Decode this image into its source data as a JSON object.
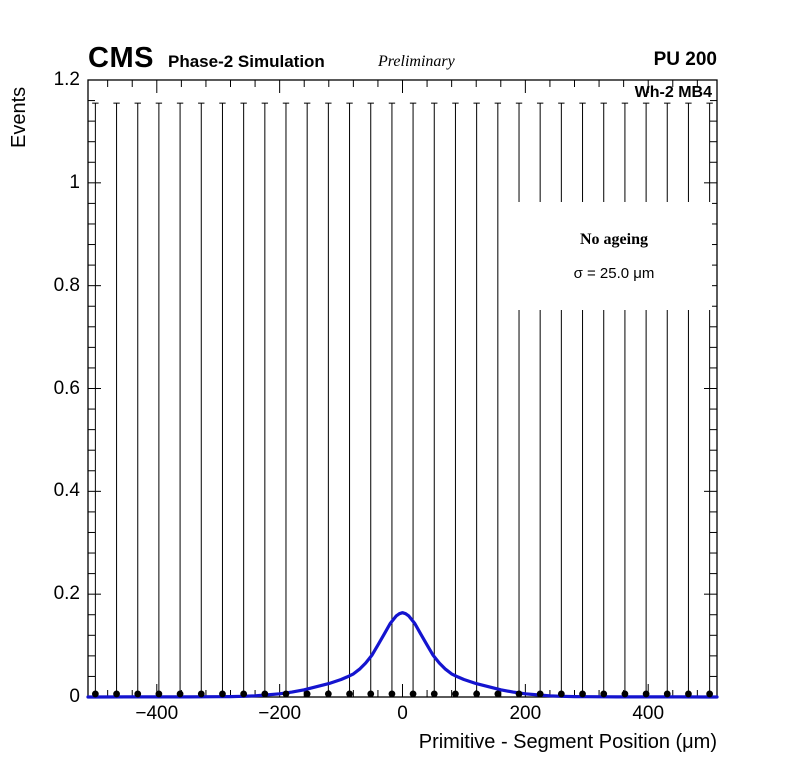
{
  "header": {
    "cms": "CMS",
    "phase": "Phase-2 Simulation",
    "preliminary": "Preliminary",
    "pu": "PU 200"
  },
  "plot_label": "Wh-2 MB4",
  "info_box": {
    "line1": "No ageing",
    "line2": "σ = 25.0 μm"
  },
  "chart_data": {
    "type": "line",
    "title": "",
    "xlabel": "Primitive - Segment Position (μm)",
    "ylabel": "Events",
    "xlim": [
      -512,
      512
    ],
    "ylim": [
      0,
      1.2
    ],
    "grid": false,
    "legend_position": "none",
    "x_ticks": [
      -400,
      -200,
      0,
      200,
      400
    ],
    "x_tick_labels": [
      "−400",
      "−200",
      "0",
      "200",
      "400"
    ],
    "x_minor_step": 40,
    "y_ticks": [
      0,
      0.2,
      0.4,
      0.6,
      0.8,
      1,
      1.2
    ],
    "y_tick_labels": [
      "0",
      "0.2",
      "0.4",
      "0.6",
      "0.8",
      "1",
      "1.2"
    ],
    "y_minor_step": 0.04,
    "frame_color": "#000000",
    "fit_curve": {
      "name": "resolution-fit",
      "color": "#1414cf",
      "width": 3.2,
      "points": [
        [
          -512,
          0
        ],
        [
          -500,
          0
        ],
        [
          -450,
          0.0001
        ],
        [
          -400,
          0.0001
        ],
        [
          -350,
          0.0002
        ],
        [
          -300,
          0.0005
        ],
        [
          -280,
          0.0008
        ],
        [
          -260,
          0.0014
        ],
        [
          -240,
          0.0024
        ],
        [
          -220,
          0.004
        ],
        [
          -200,
          0.0063
        ],
        [
          -180,
          0.0096
        ],
        [
          -160,
          0.014
        ],
        [
          -140,
          0.02
        ],
        [
          -120,
          0.026
        ],
        [
          -100,
          0.034
        ],
        [
          -90,
          0.039
        ],
        [
          -80,
          0.045
        ],
        [
          -70,
          0.054
        ],
        [
          -60,
          0.066
        ],
        [
          -50,
          0.081
        ],
        [
          -40,
          0.101
        ],
        [
          -30,
          0.122
        ],
        [
          -20,
          0.143
        ],
        [
          -10,
          0.158
        ],
        [
          -5,
          0.162
        ],
        [
          0,
          0.164
        ],
        [
          5,
          0.162
        ],
        [
          10,
          0.158
        ],
        [
          20,
          0.143
        ],
        [
          30,
          0.122
        ],
        [
          40,
          0.101
        ],
        [
          50,
          0.081
        ],
        [
          60,
          0.066
        ],
        [
          70,
          0.054
        ],
        [
          80,
          0.045
        ],
        [
          90,
          0.039
        ],
        [
          100,
          0.034
        ],
        [
          120,
          0.026
        ],
        [
          140,
          0.02
        ],
        [
          160,
          0.014
        ],
        [
          180,
          0.0096
        ],
        [
          200,
          0.0063
        ],
        [
          220,
          0.004
        ],
        [
          240,
          0.0024
        ],
        [
          260,
          0.0014
        ],
        [
          280,
          0.0008
        ],
        [
          300,
          0.0005
        ],
        [
          350,
          0.0002
        ],
        [
          400,
          0.0001
        ],
        [
          450,
          0.0001
        ],
        [
          500,
          0
        ],
        [
          512,
          0
        ]
      ]
    },
    "data_points": {
      "name": "data",
      "color": "#000000",
      "marker": "filled-circle",
      "x": [
        -500,
        -465.5,
        -431,
        -396.6,
        -362.1,
        -327.6,
        -293.1,
        -258.6,
        -224.1,
        -189.7,
        -155.2,
        -120.7,
        -86.2,
        -51.7,
        -17.2,
        17.2,
        51.7,
        86.2,
        120.7,
        155.2,
        189.7,
        224.1,
        258.6,
        293.1,
        327.6,
        362.1,
        396.6,
        431,
        465.5,
        500
      ],
      "y_all": 0.006,
      "err_low_all": 0,
      "err_top_all": 1.155
    }
  }
}
